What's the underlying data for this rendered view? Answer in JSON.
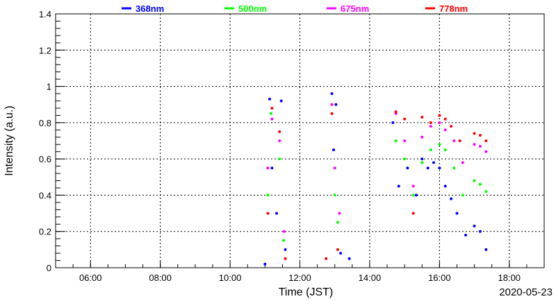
{
  "chart_data": {
    "type": "scatter",
    "xlabel": "Time (JST)",
    "ylabel": "Intensity (a.u.)",
    "date": "2020-05-23",
    "xlim": [
      "05:00",
      "19:00"
    ],
    "ylim": [
      0,
      1.4
    ],
    "xticks": [
      "06:00",
      "08:00",
      "10:00",
      "12:00",
      "14:00",
      "16:00",
      "18:00"
    ],
    "yticks": [
      "0",
      "0.2",
      "0.4",
      "0.6",
      "0.8",
      "1",
      "1.2",
      "1.4"
    ],
    "grid": true,
    "legend_position": "top",
    "series": [
      {
        "name": "368nm",
        "color": "#0000ff",
        "points": [
          [
            "11:00",
            0.02
          ],
          [
            "11:08",
            0.93
          ],
          [
            "11:12",
            0.55
          ],
          [
            "11:20",
            0.3
          ],
          [
            "11:28",
            0.92
          ],
          [
            "11:35",
            0.1
          ],
          [
            "12:55",
            0.96
          ],
          [
            "12:58",
            0.65
          ],
          [
            "13:02",
            0.9
          ],
          [
            "13:10",
            0.08
          ],
          [
            "13:25",
            0.05
          ],
          [
            "14:40",
            0.8
          ],
          [
            "14:50",
            0.45
          ],
          [
            "15:05",
            0.55
          ],
          [
            "15:20",
            0.4
          ],
          [
            "15:30",
            0.6
          ],
          [
            "15:40",
            0.55
          ],
          [
            "15:50",
            0.58
          ],
          [
            "16:00",
            0.55
          ],
          [
            "16:10",
            0.45
          ],
          [
            "16:20",
            0.38
          ],
          [
            "16:30",
            0.3
          ],
          [
            "16:45",
            0.18
          ],
          [
            "17:00",
            0.23
          ],
          [
            "17:10",
            0.2
          ],
          [
            "17:20",
            0.1
          ]
        ]
      },
      {
        "name": "500nm",
        "color": "#00ff00",
        "points": [
          [
            "11:05",
            0.4
          ],
          [
            "11:10",
            0.85
          ],
          [
            "11:25",
            0.6
          ],
          [
            "11:32",
            0.15
          ],
          [
            "12:55",
            0.85
          ],
          [
            "13:00",
            0.4
          ],
          [
            "13:05",
            0.25
          ],
          [
            "14:45",
            0.7
          ],
          [
            "15:00",
            0.6
          ],
          [
            "15:15",
            0.4
          ],
          [
            "15:30",
            0.58
          ],
          [
            "15:45",
            0.65
          ],
          [
            "16:00",
            0.68
          ],
          [
            "16:10",
            0.65
          ],
          [
            "16:25",
            0.55
          ],
          [
            "16:40",
            0.4
          ],
          [
            "17:00",
            0.48
          ],
          [
            "17:10",
            0.46
          ],
          [
            "17:20",
            0.42
          ]
        ]
      },
      {
        "name": "675nm",
        "color": "#ff00ff",
        "points": [
          [
            "11:05",
            0.55
          ],
          [
            "11:12",
            0.82
          ],
          [
            "11:25",
            0.7
          ],
          [
            "11:33",
            0.2
          ],
          [
            "12:55",
            0.9
          ],
          [
            "13:00",
            0.55
          ],
          [
            "13:08",
            0.3
          ],
          [
            "14:45",
            0.85
          ],
          [
            "15:00",
            0.7
          ],
          [
            "15:15",
            0.45
          ],
          [
            "15:30",
            0.72
          ],
          [
            "15:45",
            0.78
          ],
          [
            "16:00",
            0.8
          ],
          [
            "16:10",
            0.76
          ],
          [
            "16:25",
            0.7
          ],
          [
            "16:40",
            0.58
          ],
          [
            "17:00",
            0.68
          ],
          [
            "17:10",
            0.67
          ],
          [
            "17:20",
            0.64
          ]
        ]
      },
      {
        "name": "778nm",
        "color": "#ff0000",
        "points": [
          [
            "11:05",
            0.3
          ],
          [
            "11:12",
            0.88
          ],
          [
            "11:25",
            0.75
          ],
          [
            "11:35",
            0.05
          ],
          [
            "12:45",
            0.05
          ],
          [
            "12:55",
            0.85
          ],
          [
            "13:05",
            0.1
          ],
          [
            "14:45",
            0.86
          ],
          [
            "15:00",
            0.82
          ],
          [
            "15:15",
            0.3
          ],
          [
            "15:30",
            0.83
          ],
          [
            "15:45",
            0.8
          ],
          [
            "16:00",
            0.84
          ],
          [
            "16:10",
            0.82
          ],
          [
            "16:20",
            0.78
          ],
          [
            "16:35",
            0.7
          ],
          [
            "17:00",
            0.74
          ],
          [
            "17:10",
            0.73
          ],
          [
            "17:20",
            0.7
          ]
        ]
      }
    ]
  }
}
